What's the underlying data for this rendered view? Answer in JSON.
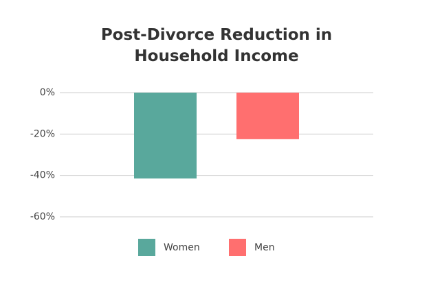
{
  "chart_data": {
    "type": "bar",
    "title": "Post-Divorce Reduction in Household Income",
    "categories": [
      null
    ],
    "series": [
      {
        "name": "Women",
        "color": "#59a89c",
        "values": [
          -41.5
        ]
      },
      {
        "name": "Men",
        "color": "#ff6f6f",
        "values": [
          -22.5
        ]
      }
    ],
    "ylim": [
      -60,
      0
    ],
    "yticks": [
      {
        "value": 0,
        "label": "0%"
      },
      {
        "value": -20,
        "label": "-20%"
      },
      {
        "value": -40,
        "label": "-40%"
      },
      {
        "value": -60,
        "label": "-60%"
      }
    ],
    "grid": true
  }
}
